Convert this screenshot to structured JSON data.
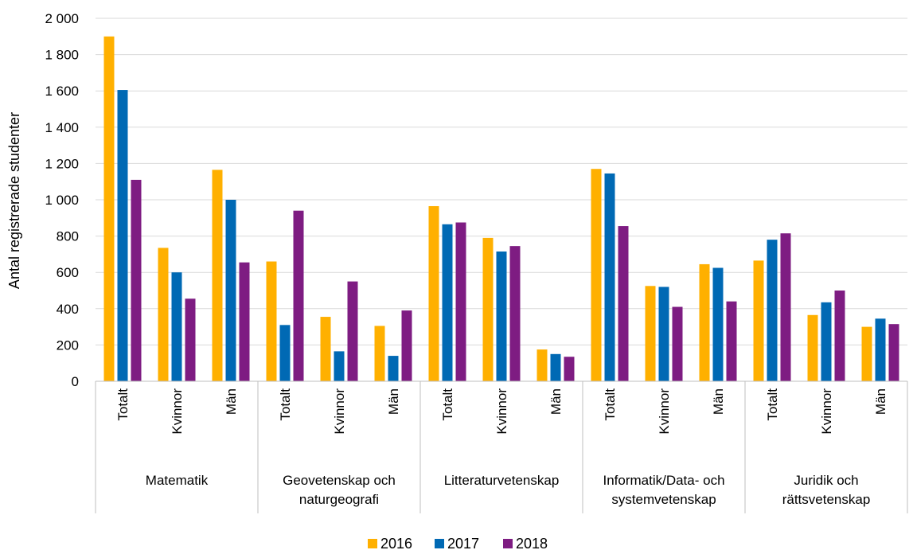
{
  "chart_data": {
    "type": "bar",
    "title": "",
    "ylabel": "Antal registrerade studenter",
    "xlabel": "",
    "ylim": [
      0,
      2000
    ],
    "y_ticks": [
      0,
      200,
      400,
      600,
      800,
      1000,
      1200,
      1400,
      1600,
      1800,
      2000
    ],
    "y_tick_labels": [
      "0",
      "200",
      "400",
      "600",
      "800",
      "1 000",
      "1 200",
      "1 400",
      "1 600",
      "1 800",
      "2 000"
    ],
    "grid": true,
    "legend_position": "bottom",
    "groups": [
      {
        "name": "Matematik",
        "label_lines": [
          "Matematik"
        ]
      },
      {
        "name": "Geovetenskap och naturgeografi",
        "label_lines": [
          "Geovetenskap och",
          "naturgeografi"
        ]
      },
      {
        "name": "Litteraturvetenskap",
        "label_lines": [
          "Litteraturvetenskap"
        ]
      },
      {
        "name": "Informatik/Data- och systemvetenskap",
        "label_lines": [
          "Informatik/Data- och",
          "systemvetenskap"
        ]
      },
      {
        "name": "Juridik och rättsvetenskap",
        "label_lines": [
          "Juridik och",
          "rättsvetenskap"
        ]
      }
    ],
    "subcategories": [
      "Totalt",
      "Kvinnor",
      "Män"
    ],
    "series": [
      {
        "name": "2016",
        "color": "#FFB000",
        "values": [
          1900,
          735,
          1165,
          660,
          355,
          305,
          965,
          790,
          175,
          1170,
          525,
          645,
          665,
          365,
          300
        ]
      },
      {
        "name": "2017",
        "color": "#0069B4",
        "values": [
          1605,
          600,
          1000,
          310,
          165,
          140,
          865,
          715,
          150,
          1145,
          520,
          625,
          780,
          435,
          345
        ]
      },
      {
        "name": "2018",
        "color": "#7E1C82",
        "values": [
          1110,
          455,
          655,
          940,
          550,
          390,
          875,
          745,
          135,
          855,
          410,
          440,
          815,
          500,
          315
        ]
      }
    ]
  }
}
